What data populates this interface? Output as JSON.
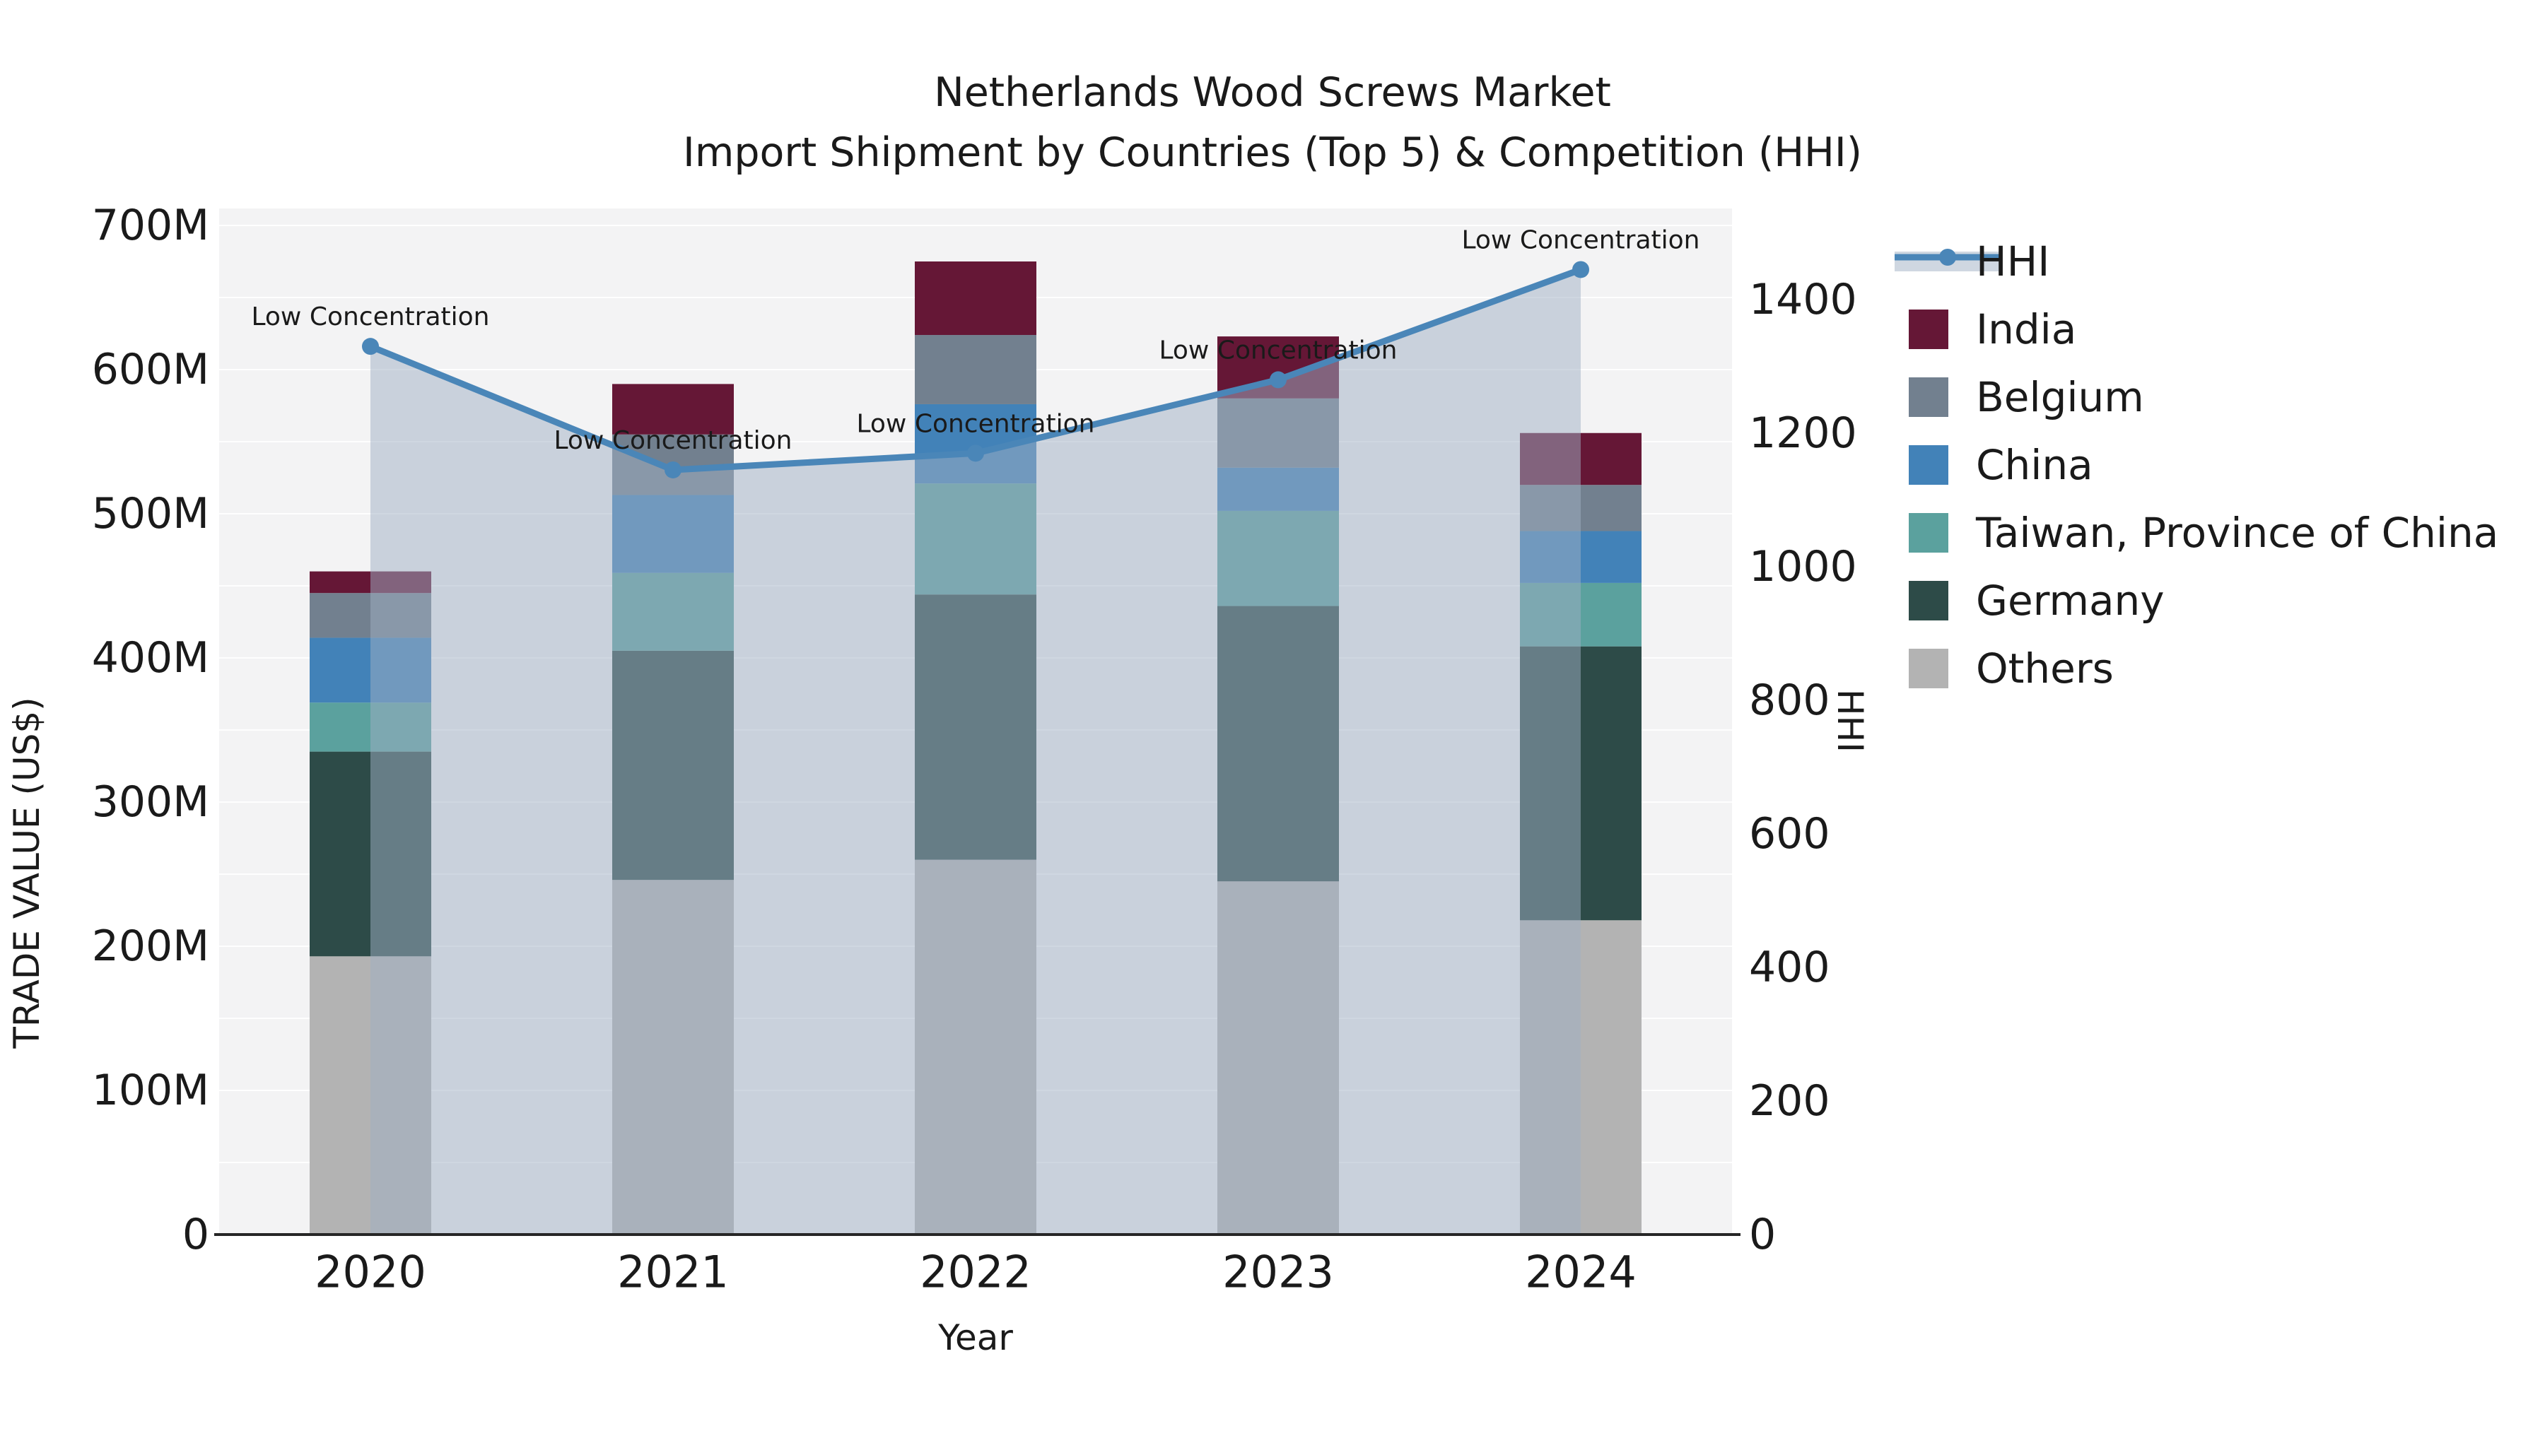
{
  "figure": {
    "title_line1": "Netherlands Wood Screws Market",
    "title_line2": "Import Shipment by Countries (Top 5) & Competition (HHI)"
  },
  "axes": {
    "y_left": {
      "title": "TRADE VALUE (US$)",
      "tick_labels": [
        "0",
        "100M",
        "200M",
        "300M",
        "400M",
        "500M",
        "600M",
        "700M"
      ],
      "max_m": 700,
      "gridline_step_m": 50
    },
    "y_right": {
      "title": "HHI",
      "tick_labels": [
        "0",
        "200",
        "400",
        "600",
        "800",
        "1000",
        "1200",
        "1400"
      ],
      "max": 1400
    },
    "x": {
      "title": "Year",
      "categories": [
        "2020",
        "2021",
        "2022",
        "2023",
        "2024"
      ]
    }
  },
  "legend": {
    "items": [
      {
        "label": "HHI",
        "type": "line",
        "color": "#4a86b8",
        "band_color": "rgba(160,175,196,0.5)"
      },
      {
        "label": "India",
        "type": "patch",
        "color": "#651736"
      },
      {
        "label": "Belgium",
        "type": "patch",
        "color": "#72808f"
      },
      {
        "label": "China",
        "type": "patch",
        "color": "#4282b8"
      },
      {
        "label": "Taiwan, Province of China",
        "type": "patch",
        "color": "#5ba19e"
      },
      {
        "label": "Germany",
        "type": "patch",
        "color": "#2d4b48"
      },
      {
        "label": "Others",
        "type": "patch",
        "color": "#b3b3b3"
      }
    ]
  },
  "annotations": {
    "label": "Low Concentration"
  },
  "chart_data": [
    {
      "type": "bar",
      "stacked": true,
      "title": "Import Shipment by Countries (Top 5)",
      "categories": [
        "2020",
        "2021",
        "2022",
        "2023",
        "2024"
      ],
      "unit": "M US$ (estimated from axis)",
      "xlabel": "Year",
      "ylabel": "TRADE VALUE (US$)",
      "ylim": [
        0,
        700
      ],
      "series": [
        {
          "name": "Others",
          "color": "#b3b3b3",
          "values": [
            193,
            246,
            260,
            245,
            218
          ]
        },
        {
          "name": "Germany",
          "color": "#2d4b48",
          "values": [
            142,
            159,
            184,
            191,
            190
          ]
        },
        {
          "name": "Taiwan, Province of China",
          "color": "#5ba19e",
          "values": [
            34,
            54,
            77,
            66,
            44
          ]
        },
        {
          "name": "China",
          "color": "#4282b8",
          "values": [
            45,
            54,
            55,
            30,
            36
          ]
        },
        {
          "name": "Belgium",
          "color": "#72808f",
          "values": [
            31,
            42,
            48,
            48,
            32
          ]
        },
        {
          "name": "India",
          "color": "#651736",
          "values": [
            15,
            35,
            51,
            43,
            36
          ]
        }
      ]
    },
    {
      "type": "line",
      "name": "HHI",
      "categories": [
        "2020",
        "2021",
        "2022",
        "2023",
        "2024"
      ],
      "values": [
        1330,
        1145,
        1170,
        1280,
        1445
      ],
      "ylabel": "HHI",
      "ylim": [
        0,
        1400
      ],
      "area_fill": true,
      "color": "#4a86b8",
      "fill_color": "rgba(160,175,196,0.5)",
      "point_labels": [
        "Low Concentration",
        "Low Concentration",
        "Low Concentration",
        "Low Concentration",
        "Low Concentration"
      ],
      "legend_position": "right"
    }
  ],
  "colors": {
    "background": "#ffffff",
    "plot_background": "#f3f3f4",
    "gridline": "rgba(255,255,255,0.9)",
    "axis_line": "#262626",
    "text": "#1a1a1a"
  }
}
